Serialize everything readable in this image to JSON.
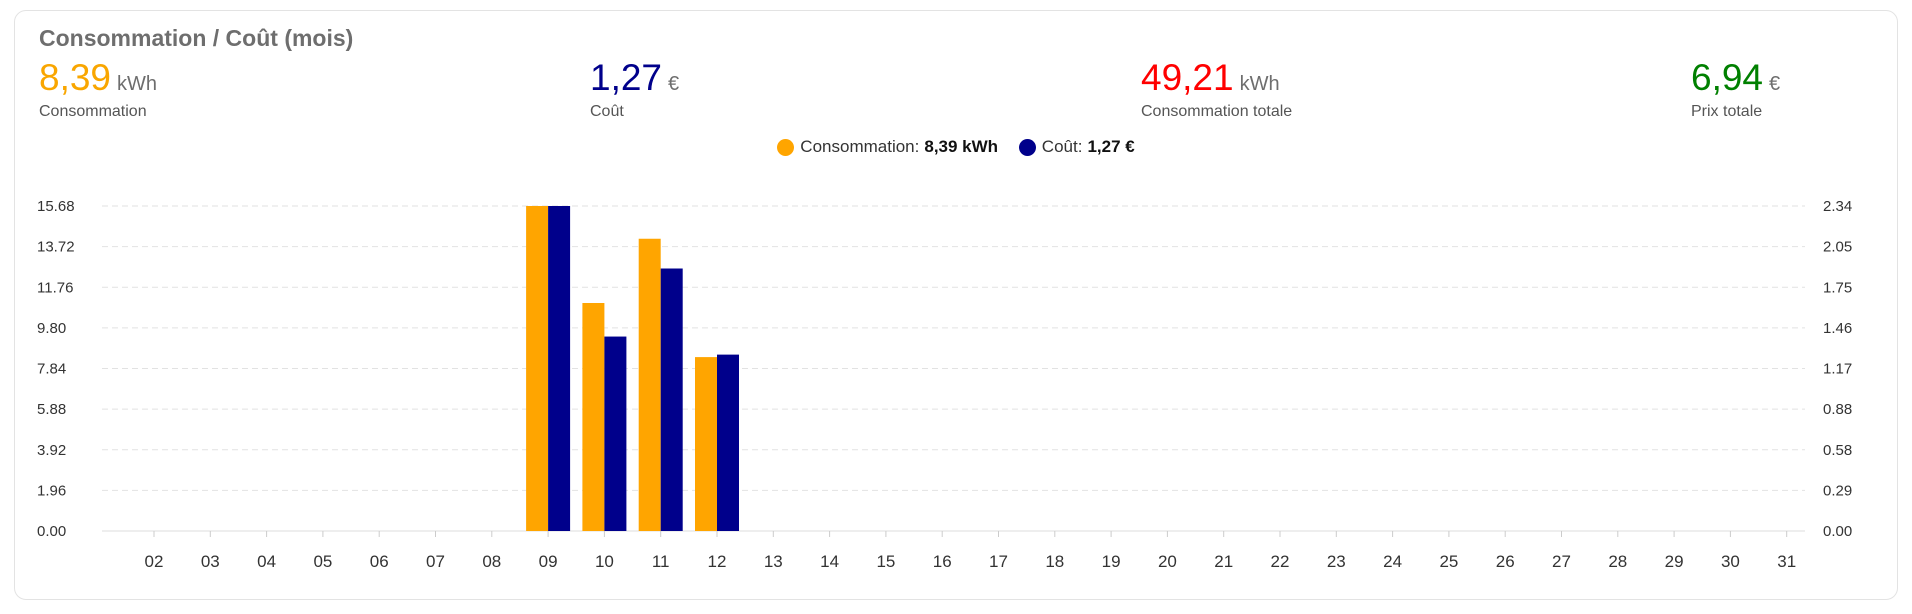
{
  "card": {
    "title": "Consommation / Coût (mois)"
  },
  "stats": [
    {
      "value": "8,39",
      "unit": "kWh",
      "label": "Consommation",
      "color": "#f9a600"
    },
    {
      "value": "1,27",
      "unit": "€",
      "label": "Coût",
      "color": "#00008b"
    },
    {
      "value": "49,21",
      "unit": "kWh",
      "label": "Consommation totale",
      "color": "#ff0000"
    },
    {
      "value": "6,94",
      "unit": "€",
      "label": "Prix totale",
      "color": "#008000"
    }
  ],
  "legend": {
    "consumption": {
      "label": "Consommation:",
      "value": "8,39 kWh"
    },
    "cost": {
      "label": "Coût:",
      "value": "1,27 €"
    }
  },
  "chart_data": {
    "type": "bar",
    "categories": [
      "02",
      "03",
      "04",
      "05",
      "06",
      "07",
      "08",
      "09",
      "10",
      "11",
      "12",
      "13",
      "14",
      "15",
      "16",
      "17",
      "18",
      "19",
      "20",
      "21",
      "22",
      "23",
      "24",
      "25",
      "26",
      "27",
      "28",
      "29",
      "30",
      "31"
    ],
    "series": [
      {
        "name": "Consommation",
        "axis": "left",
        "color": "#ffa500",
        "values": [
          null,
          null,
          null,
          null,
          null,
          null,
          null,
          15.68,
          11.0,
          14.1,
          8.39,
          null,
          null,
          null,
          null,
          null,
          null,
          null,
          null,
          null,
          null,
          null,
          null,
          null,
          null,
          null,
          null,
          null,
          null,
          null
        ]
      },
      {
        "name": "Coût",
        "axis": "right",
        "color": "#00008b",
        "values": [
          null,
          null,
          null,
          null,
          null,
          null,
          null,
          2.34,
          1.4,
          1.89,
          1.27,
          null,
          null,
          null,
          null,
          null,
          null,
          null,
          null,
          null,
          null,
          null,
          null,
          null,
          null,
          null,
          null,
          null,
          null,
          null
        ]
      }
    ],
    "y_left_ticks": [
      "0.00",
      "1.96",
      "3.92",
      "5.88",
      "7.84",
      "9.80",
      "11.76",
      "13.72",
      "15.68"
    ],
    "y_right_ticks": [
      "0.00",
      "0.29",
      "0.58",
      "0.88",
      "1.17",
      "1.46",
      "1.75",
      "2.05",
      "2.34"
    ],
    "ylim_left": [
      0,
      15.68
    ],
    "ylim_right": [
      0,
      2.34
    ],
    "grid": true,
    "legend_position": "top-center"
  }
}
